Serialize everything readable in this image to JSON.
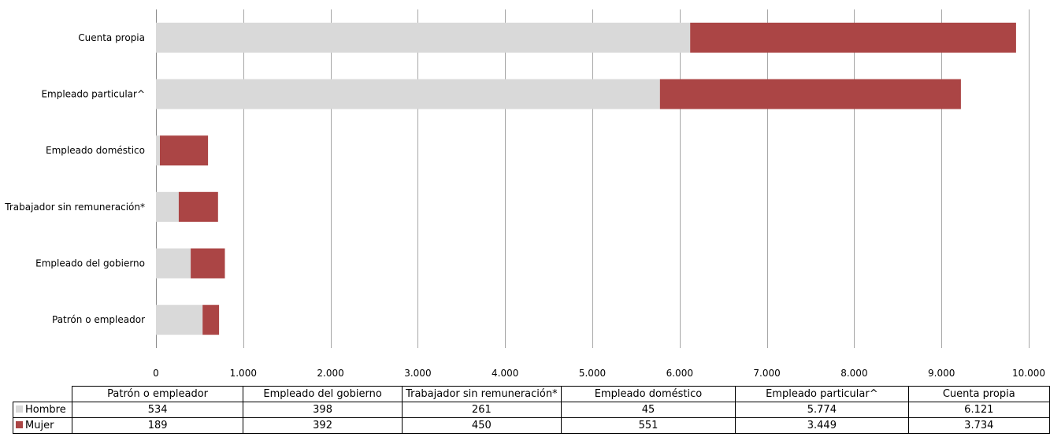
{
  "chart_data": {
    "type": "bar",
    "orientation": "horizontal",
    "stacked": true,
    "categories": [
      "Patrón o empleador",
      "Empleado del gobierno",
      "Trabajador sin remuneración*",
      "Empleado doméstico",
      "Empleado particular^",
      "Cuenta propia"
    ],
    "series": [
      {
        "name": "Hombre",
        "values": [
          534,
          398,
          261,
          45,
          5774,
          6121
        ],
        "labels": [
          "534",
          "398",
          "261",
          "45",
          "5.774",
          "6.121"
        ],
        "color": "#d9d9d9"
      },
      {
        "name": "Mujer",
        "values": [
          189,
          392,
          450,
          551,
          3449,
          3734
        ],
        "labels": [
          "189",
          "392",
          "450",
          "551",
          "3.449",
          "3.734"
        ],
        "color": "#ab4545"
      }
    ],
    "xlim": [
      0,
      10000
    ],
    "xticks": [
      0,
      1000,
      2000,
      3000,
      4000,
      5000,
      6000,
      7000,
      8000,
      9000,
      10000
    ],
    "xtick_labels": [
      "0",
      "1.000",
      "2.000",
      "3.000",
      "4.000",
      "5.000",
      "6.000",
      "7.000",
      "8.000",
      "9.000",
      "10.000"
    ],
    "grid": "vertical",
    "legend": "data table below chart"
  }
}
